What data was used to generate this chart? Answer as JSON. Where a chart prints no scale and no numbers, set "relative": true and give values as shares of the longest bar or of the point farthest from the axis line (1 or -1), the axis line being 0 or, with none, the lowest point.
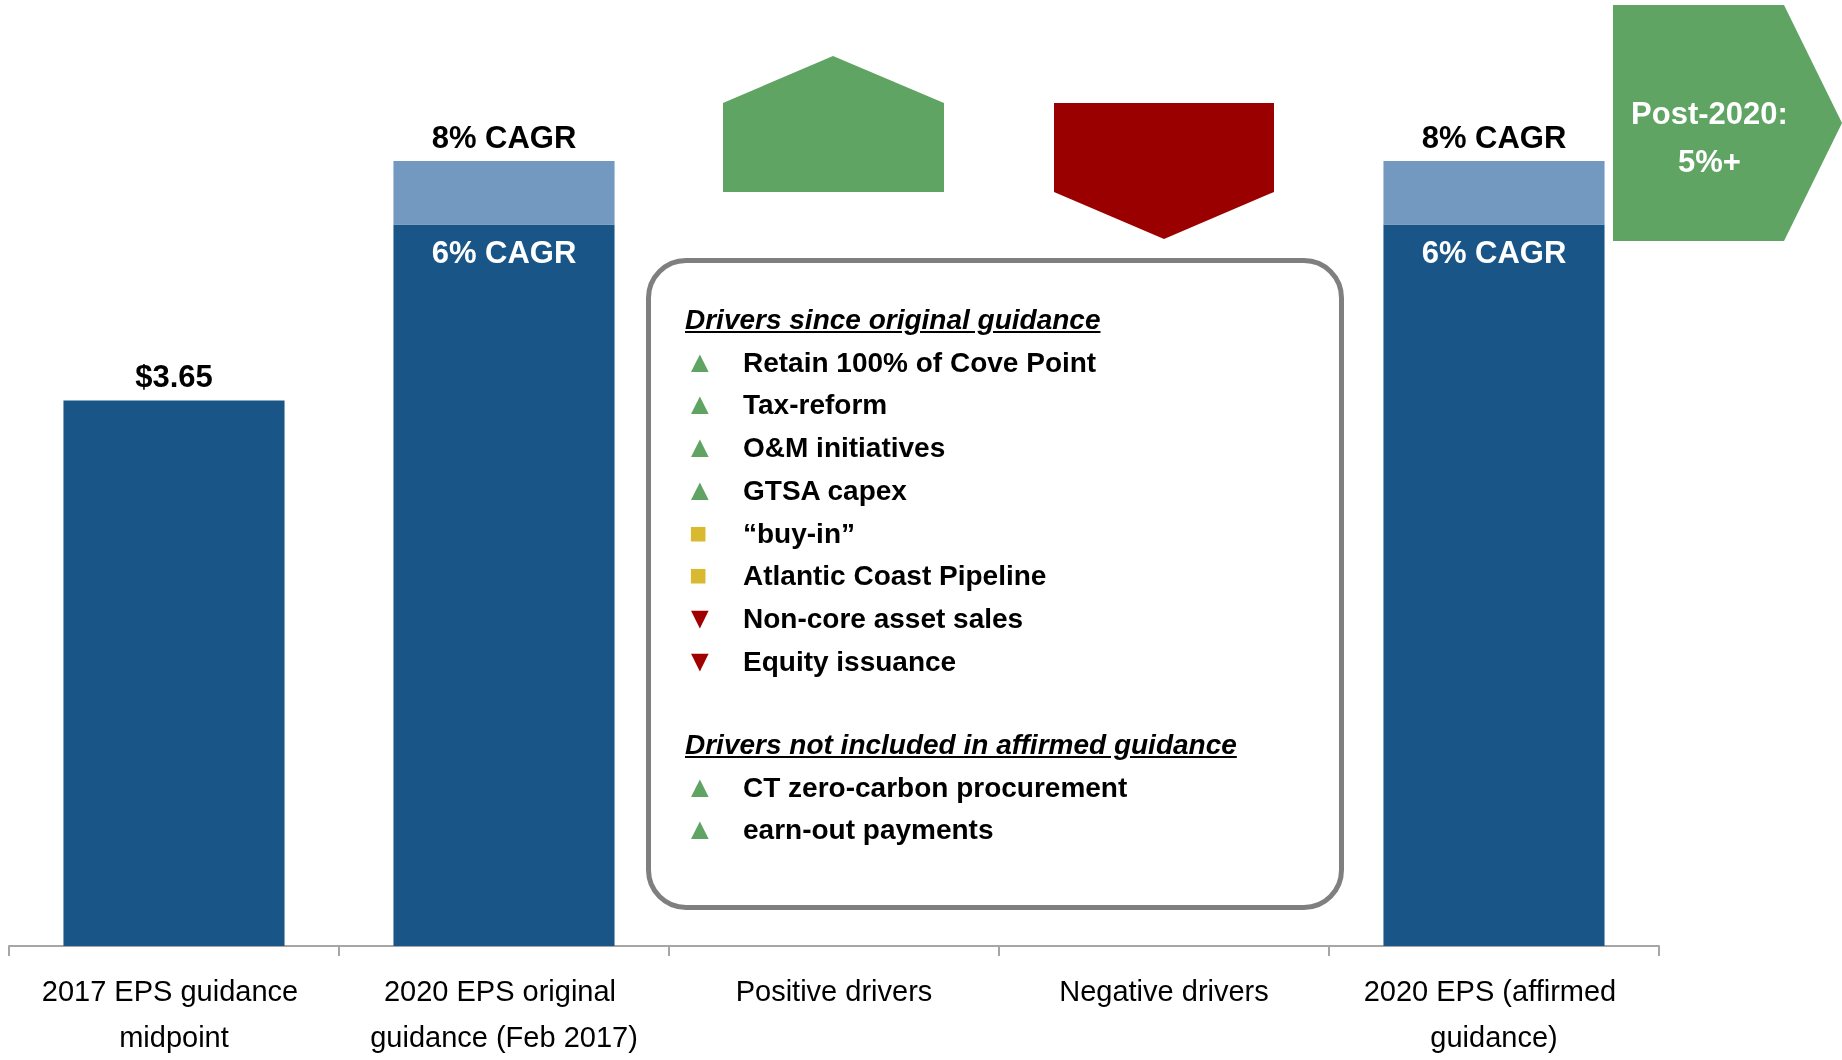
{
  "chart_data": {
    "type": "bar",
    "relative": true,
    "stacked": true,
    "categories": [
      "2017 EPS guidance midpoint",
      "2020 EPS original guidance (Feb 2017)",
      "Positive drivers",
      "Negative drivers",
      "2020 EPS (affirmed guidance)"
    ],
    "series": [
      {
        "color": "#1a5587",
        "values": [
          0.695,
          0.919,
          null,
          null,
          0.919
        ]
      },
      {
        "color": "#7399c0",
        "values": [
          null,
          0.081,
          null,
          null,
          0.081
        ]
      }
    ],
    "annotations": [
      "Post-2020: 5%+",
      "Drivers since original guidance",
      "▲ Retain 100% of Cove Point",
      "▲ Tax-reform",
      "▲ O&M initiatives",
      "▲ GTSA capex",
      "■ “buy-in”",
      "■ Atlantic Coast Pipeline",
      "▼ Non-core asset sales",
      "▼ Equity issuance",
      "Drivers not included in affirmed guidance",
      "▲ CT zero-carbon procurement",
      "▲ earn-out payments",
      {
        "text": "$3.65",
        "x": "2017 EPS guidance midpoint",
        "y": 0.695
      },
      {
        "text": "6% CAGR",
        "x": "2020 EPS original guidance (Feb 2017)",
        "y": 0.919
      },
      {
        "text": "8% CAGR",
        "x": "2020 EPS original guidance (Feb 2017)",
        "y": 1
      },
      {
        "text": "6% CAGR",
        "x": "2020 EPS (affirmed guidance)",
        "y": 0.919
      },
      {
        "text": "8% CAGR",
        "x": "2020 EPS (affirmed guidance)",
        "y": 1
      }
    ],
    "grid": false
  }
}
